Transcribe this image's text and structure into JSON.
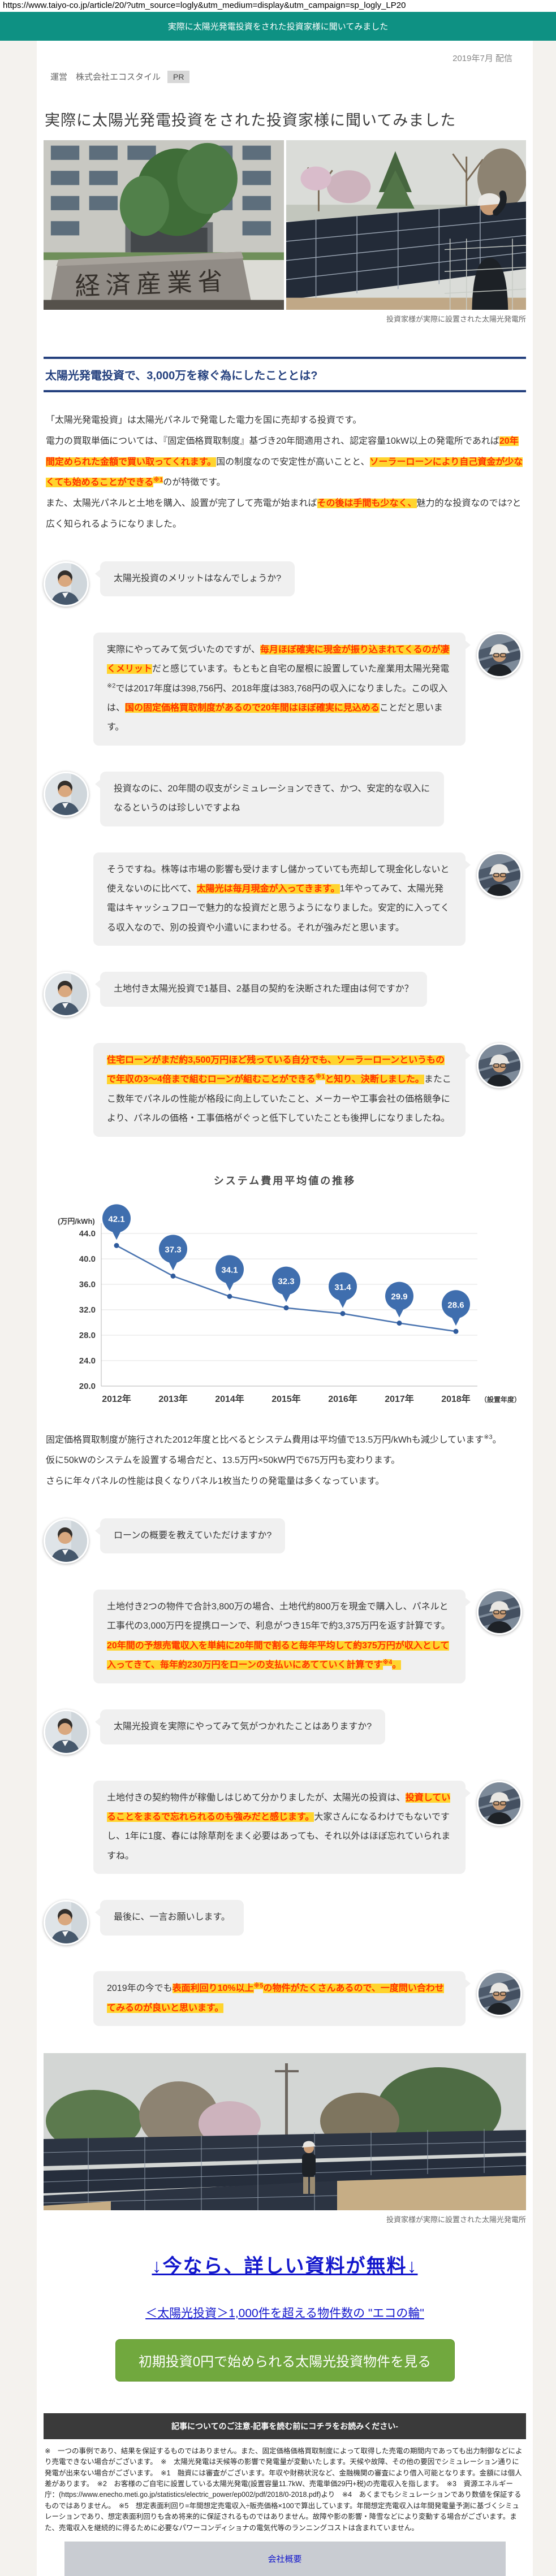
{
  "page": {
    "url": "https://www.taiyo-co.jp/article/20/?utm_source=logly&utm_medium=display&utm_campaign=sp_logly_LP20",
    "header_bar": "実際に太陽光発電投資をされた投資家様に聞いてみました",
    "published": "2019年7月 配信",
    "operator_label": "運営　株式会社エコスタイル",
    "pr_badge": "PR",
    "title": "実際に太陽光発電投資をされた投資家様に聞いてみました"
  },
  "photos": {
    "caption_top": "投資家様が実際に設置された太陽光発電所",
    "caption_bottom": "投資家様が実際に設置された太陽光発電所",
    "left_photo_alt": "経済産業省の石碑と庁舎",
    "right_photo_alt": "太陽光パネルと投資家様",
    "bottom_photo_alt": "投資家様が設置した太陽光発電所の全景"
  },
  "section": {
    "heading": "太陽光発電投資で、3,000万を稼ぐ為にしたこととは?"
  },
  "intro_segments": [
    {
      "t": "「太陽光発電投資」は太陽光パネルで発電した電力を国に売却する投資です。\n"
    },
    {
      "t": "電力の買取単価については、『固定価格買取制度』基づき20年間適用され、認定容量10kW以上の発電所であれば"
    },
    {
      "t": "20年間定められた金額で買い取ってくれます。",
      "h": true
    },
    {
      "t": "国の制度なので安定性が高いことと、"
    },
    {
      "t": "ソーラーローンにより自己資金が少なくても始めることができる",
      "h": true
    },
    {
      "t": "※1",
      "h": true,
      "sup": true
    },
    {
      "t": "のが特徴です。\n"
    },
    {
      "t": "また、太陽光パネルと土地を購入、設置が完了して売電が始まれば"
    },
    {
      "t": "その後は手間も少なく、",
      "h": true
    },
    {
      "t": "魅力的な投資なのでは?と広く知られるようになりました。"
    }
  ],
  "chat1": [
    {
      "role": "interviewer",
      "segments": [
        {
          "t": "太陽光投資のメリットはなんでしょうか?"
        }
      ]
    },
    {
      "role": "investor",
      "segments": [
        {
          "t": "実際にやってみて気づいたのですが、"
        },
        {
          "t": "毎月ほぼ確実に現金が振り込まれてくるのが凄くメリット",
          "h": true
        },
        {
          "t": "だと感じています。もともと自宅の屋根に設置していた産業用太陽光発電"
        },
        {
          "t": "※2",
          "sup": true
        },
        {
          "t": "では2017年度は398,756円、2018年度は383,768円の収入になりました。この収入は、"
        },
        {
          "t": "国の固定価格買取制度があるので20年間はほぼ確実に見込める",
          "h": true
        },
        {
          "t": "ことだと思います。"
        }
      ]
    },
    {
      "role": "interviewer",
      "segments": [
        {
          "t": "投資なのに、20年間の収支がシミュレーションできて、かつ、安定的な収入になるというのは珍しいですよね"
        }
      ]
    },
    {
      "role": "investor",
      "segments": [
        {
          "t": "そうですね。株等は市場の影響も受けますし儲かっていても売却して現金化しないと使えないのに比べて、"
        },
        {
          "t": "太陽光は毎月現金が入ってきます。",
          "h": true
        },
        {
          "t": "1年やってみて、太陽光発電はキャッシュフローで魅力的な投資だと思うようになりました。安定的に入ってくる収入なので、別の投資や小遣いにまわせる。それが強みだと思います。"
        }
      ]
    },
    {
      "role": "interviewer",
      "segments": [
        {
          "t": "土地付き太陽光投資で1基目、2基目の契約を決断された理由は何ですか？"
        }
      ]
    },
    {
      "role": "investor",
      "segments": [
        {
          "t": "住宅ローンがまだ約3,500万円ほど残っている自分でも、ソーラーローンというもので年収の3～4倍まで組むローンが組むことができる",
          "h": true
        },
        {
          "t": "※1",
          "h": true,
          "sup": true
        },
        {
          "t": "と知り、決断しました。",
          "h": true
        },
        {
          "t": "またここ数年でパネルの性能が格段に向上していたこと、メーカーや工事会社の価格競争により、パネルの価格・工事価格がぐっと低下していたことも後押しになりましたね。"
        }
      ]
    }
  ],
  "chart_data": {
    "type": "line",
    "title": "システム費用平均値の推移",
    "unit_label": "(万円/kWh)",
    "x_suffix_label": "（設置年度）",
    "categories": [
      "2012年",
      "2013年",
      "2014年",
      "2015年",
      "2016年",
      "2017年",
      "2018年"
    ],
    "values": [
      42.1,
      37.3,
      34.1,
      32.3,
      31.4,
      29.9,
      28.6
    ],
    "ylim": [
      20,
      44
    ],
    "yticks": [
      20.0,
      24.0,
      28.0,
      32.0,
      36.0,
      40.0,
      44.0
    ],
    "grid": true,
    "legend_position": "none",
    "line_color": "#4a74b0",
    "marker_color": "#2f5b9d",
    "balloon_color": "#3f6eae"
  },
  "post_chart_segments": [
    {
      "t": "固定価格買取制度が施行された2012年度と比べるとシステム費用は平均値で13.5万円/kWhも減少しています"
    },
    {
      "t": "※3",
      "sup": true
    },
    {
      "t": "。\n仮に50kWのシステムを設置する場合だと、13.5万円×50kW円で675万円も変わります。\nさらに年々パネルの性能は良くなりパネル1枚当たりの発電量は多くなっています。"
    }
  ],
  "chat2": [
    {
      "role": "interviewer",
      "segments": [
        {
          "t": "ローンの概要を教えていただけますか?"
        }
      ]
    },
    {
      "role": "investor",
      "segments": [
        {
          "t": "土地付き2つの物件で合計3,800万の場合、土地代約800万を現金で購入し、パネルと工事代の3,000万円を提携ローンで、利息がつき15年で約3,375万円を返す計算です。"
        },
        {
          "t": "20年間の予想売電収入を単純に20年間で割ると毎年平均して約375万円が収入として入ってきて、毎年約230万円をローンの支払いにあてていく計算です",
          "h": true
        },
        {
          "t": "※4",
          "h": true,
          "sup": true
        },
        {
          "t": "。",
          "h": true
        }
      ]
    },
    {
      "role": "interviewer",
      "segments": [
        {
          "t": "太陽光投資を実際にやってみて気がつかれたことはありますか?"
        }
      ]
    },
    {
      "role": "investor",
      "segments": [
        {
          "t": "土地付きの契約物件が稼働しはじめて分かりましたが、太陽光の投資は、"
        },
        {
          "t": "投資していることをまるで忘れられるのも強みだと感じます。",
          "h": true
        },
        {
          "t": "大家さんになるわけでもないですし、1年に1度、春には除草剤をまく必要はあっても、それ以外はほぼ忘れていられますね。"
        }
      ]
    },
    {
      "role": "interviewer",
      "segments": [
        {
          "t": "最後に、一言お願いします。"
        }
      ]
    },
    {
      "role": "investor",
      "segments": [
        {
          "t": "2019年の今でも"
        },
        {
          "t": "表面利回り10%以上",
          "h": true
        },
        {
          "t": "※5",
          "h": true,
          "sup": true
        },
        {
          "t": "の物件がたくさんあるので、一度問い合わせてみるのが良いと思います。",
          "h": true
        }
      ]
    }
  ],
  "cta": {
    "free_docs_link": "↓今なら、詳しい資料が無料↓",
    "eco_link": "＜太陽光投資＞1,000件を超える物件数の \"エコの輪\"",
    "button": "初期投資0円で始められる太陽光投資物件を見る"
  },
  "footer": {
    "notice_bar": "記事についてのご注意-記事を読む前にコチラをお読みください-",
    "fine_print": "※　一つの事例であり、結果を保証するものではありません。また、固定価格価格買取制度によって取得した売電の期間内であっても出力制御などにより売電できない場合がございます。　※　太陽光発電は天候等の影響で発電量が変動いたします。天候や故障、その他の要因でシミュレーション通りに発電が出来ない場合がございます。　※1　融資には審査がございます。年収や財務状況など、金融機関の審査により借入可能となります。金額には個人差があります。　※2　お客様のご自宅に設置している太陽光発電(設置容量11.7kW、売電単価29円+税)の売電収入を指します。　※3　資源エネルギー庁：(https://www.enecho.meti.go.jp/statistics/electric_power/ep002/pdf/2018/0-2018.pdf)より　※4　あくまでもシミュレーションであり数値を保証するものではありません。　※5　想定表面利回り=年間想定売電収入÷販売価格×100で算出しています。年間想定売電収入は年間発電量予測に基づくシミュレーションであり、想定表面利回りも含め将来的に保証されるものではありません。故障や影の影響・降雪などにより変動する場合がございます。また、売電収入を継続的に得るために必要なパワーコンディショナの電気代等のランニングコストは含まれていません。",
    "company_link": "会社概要"
  },
  "colors": {
    "header_teal": "#0e9183",
    "heading_navy": "#24407e",
    "highlight_yellow": "#ffd42e",
    "highlight_red": "#ff3000",
    "button_green": "#71a83e",
    "link_blue": "#1216cc"
  }
}
